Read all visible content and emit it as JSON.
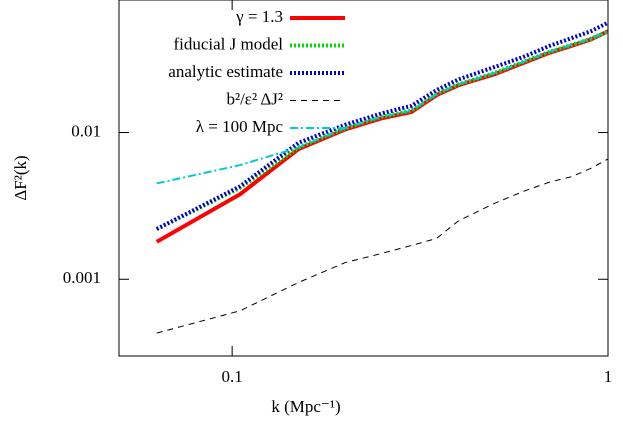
{
  "chart_data": {
    "type": "line",
    "x_label": "k (Mpc⁻¹)",
    "y_label": "ΔF²(k)",
    "x": [
      0.063,
      0.105,
      0.15,
      0.2,
      0.25,
      0.3,
      0.35,
      0.4,
      0.5,
      0.6,
      0.7,
      0.8,
      0.9,
      1.0
    ],
    "series": [
      {
        "name": "γ = 1.3",
        "color": "#ff0000",
        "dash": "solid",
        "values": [
          0.0018,
          0.0038,
          0.0077,
          0.0105,
          0.0125,
          0.0138,
          0.018,
          0.021,
          0.025,
          0.03,
          0.035,
          0.039,
          0.043,
          0.049
        ]
      },
      {
        "name": "fiducial J model",
        "color": "#00dd00",
        "dash": "dotted",
        "values": [
          0.0022,
          0.0042,
          0.0079,
          0.0107,
          0.0128,
          0.0141,
          0.0183,
          0.0213,
          0.0255,
          0.0305,
          0.0355,
          0.0395,
          0.0435,
          0.049
        ]
      },
      {
        "name": "analytic estimate",
        "color": "#0000cc",
        "dash": "dotted",
        "values": [
          0.0022,
          0.0043,
          0.0085,
          0.0113,
          0.0135,
          0.0152,
          0.0195,
          0.023,
          0.028,
          0.033,
          0.039,
          0.044,
          0.049,
          0.056
        ]
      },
      {
        "name": "b²/ε² ΔJ²",
        "color": "#000000",
        "dash": "dashed",
        "values": [
          0.00043,
          0.00061,
          0.00095,
          0.0013,
          0.0015,
          0.0017,
          0.0019,
          0.0025,
          0.0033,
          0.004,
          0.0046,
          0.005,
          0.0057,
          0.0066
        ]
      },
      {
        "name": "λ = 100 Mpc",
        "color": "#00cccc",
        "dash": "dashdot",
        "values": [
          0.0045,
          0.006,
          0.0079,
          0.0107,
          0.0128,
          0.0141,
          0.0183,
          0.0213,
          0.0255,
          0.0305,
          0.0355,
          0.0395,
          0.0435,
          0.049
        ]
      }
    ],
    "xlim": [
      0.05,
      1
    ],
    "ylim": [
      0.0003,
      0.08
    ],
    "xticks": [
      0.1,
      1
    ],
    "yticks": [
      0.001,
      0.01
    ],
    "log_x": true,
    "log_y": true,
    "legend": "top-right"
  }
}
